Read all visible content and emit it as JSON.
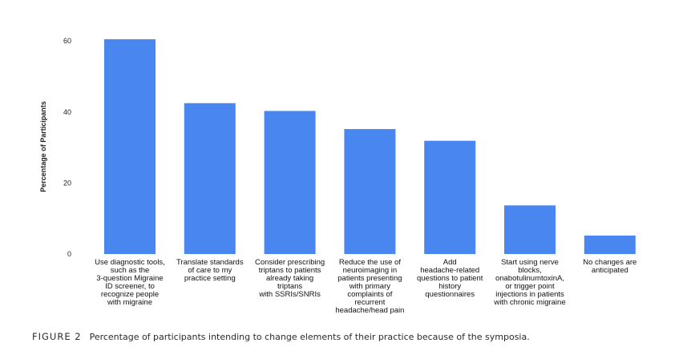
{
  "chart_data": {
    "type": "bar",
    "ylabel": "Percentage of Participants",
    "ylim": [
      0,
      62
    ],
    "yticks": [
      0,
      20,
      40,
      60
    ],
    "grid": false,
    "bar_color": "#4a86f0",
    "categories": [
      [
        "Use diagnostic tools,",
        "such as the",
        "3-question Migraine",
        "ID screener, to",
        "recognize people",
        "with migraine"
      ],
      [
        "Translate standards",
        "of care to my",
        "practice setting"
      ],
      [
        "Consider prescribing",
        "triptans to patients",
        "already taking",
        "triptans",
        "with SSRIs/SNRIs"
      ],
      [
        "Reduce the use of",
        "neuroimaging in",
        "patients presenting",
        "with primary",
        "complaints of",
        "recurrent",
        "headache/head pain"
      ],
      [
        "Add",
        "headache-related",
        "questions to patient",
        "history",
        "questionnaires"
      ],
      [
        "Start using nerve",
        "blocks,",
        "onabotulinumtoxinA,",
        "or trigger point",
        "injections in patients",
        "with chronic migraine"
      ],
      [
        "No changes are",
        "anticipated"
      ]
    ],
    "values": [
      60.5,
      42.5,
      40.3,
      35.2,
      31.9,
      13.7,
      5.2
    ]
  },
  "caption": {
    "label": "FIGURE 2",
    "text": "Percentage of participants intending to change elements of their practice because of the symposia."
  }
}
